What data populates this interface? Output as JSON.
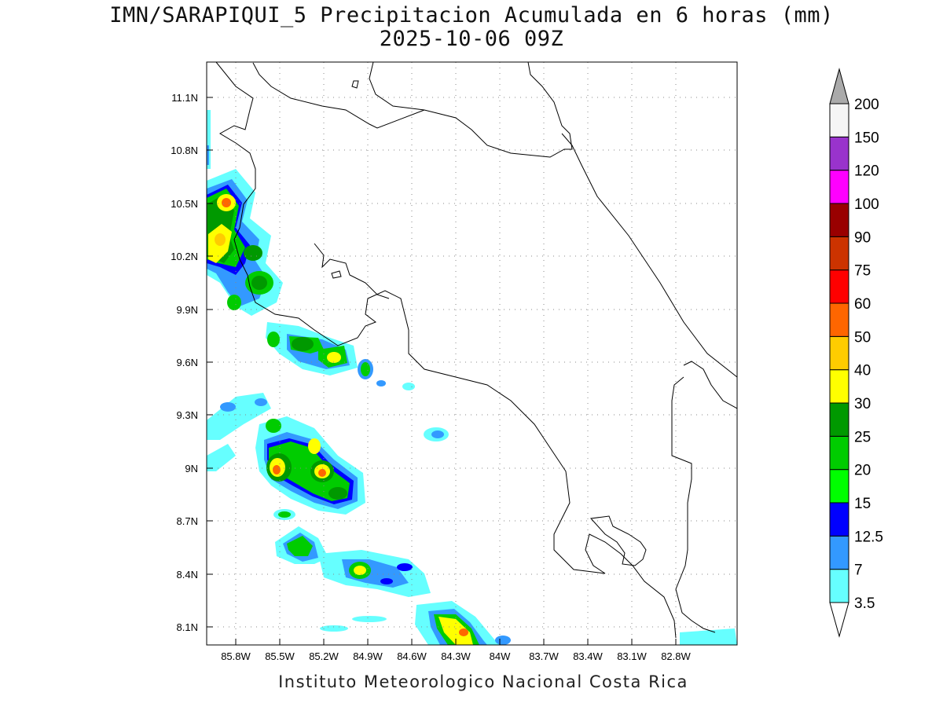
{
  "title": {
    "line1": "IMN/SARAPIQUI_5 Precipitacion Acumulada en 6 horas (mm)",
    "line2": "2025-10-06 09Z"
  },
  "footer": "Instituto Meteorologico Nacional Costa Rica",
  "map": {
    "lon_ticks": [
      "85.8W",
      "85.5W",
      "85.2W",
      "84.9W",
      "84.6W",
      "84.3W",
      "84W",
      "83.7W",
      "83.4W",
      "83.1W",
      "82.8W"
    ],
    "lat_ticks": [
      "11.1N",
      "10.8N",
      "10.5N",
      "10.2N",
      "9.9N",
      "9.6N",
      "9.3N",
      "9N",
      "8.7N",
      "8.4N",
      "8.1N"
    ]
  },
  "colorbar": {
    "labels": [
      "3.5",
      "7",
      "12.5",
      "15",
      "20",
      "25",
      "30",
      "40",
      "50",
      "60",
      "75",
      "90",
      "100",
      "120",
      "150",
      "200"
    ],
    "colors": [
      "#66ffff",
      "#3399ff",
      "#0000ff",
      "#00ff00",
      "#00cc00",
      "#009900",
      "#ffff00",
      "#ffcc00",
      "#ff6600",
      "#ff0000",
      "#cc3300",
      "#990000",
      "#ff00ff",
      "#9933cc",
      "#f5f5f5"
    ],
    "top_arrow_color": "#aaaaaa"
  }
}
